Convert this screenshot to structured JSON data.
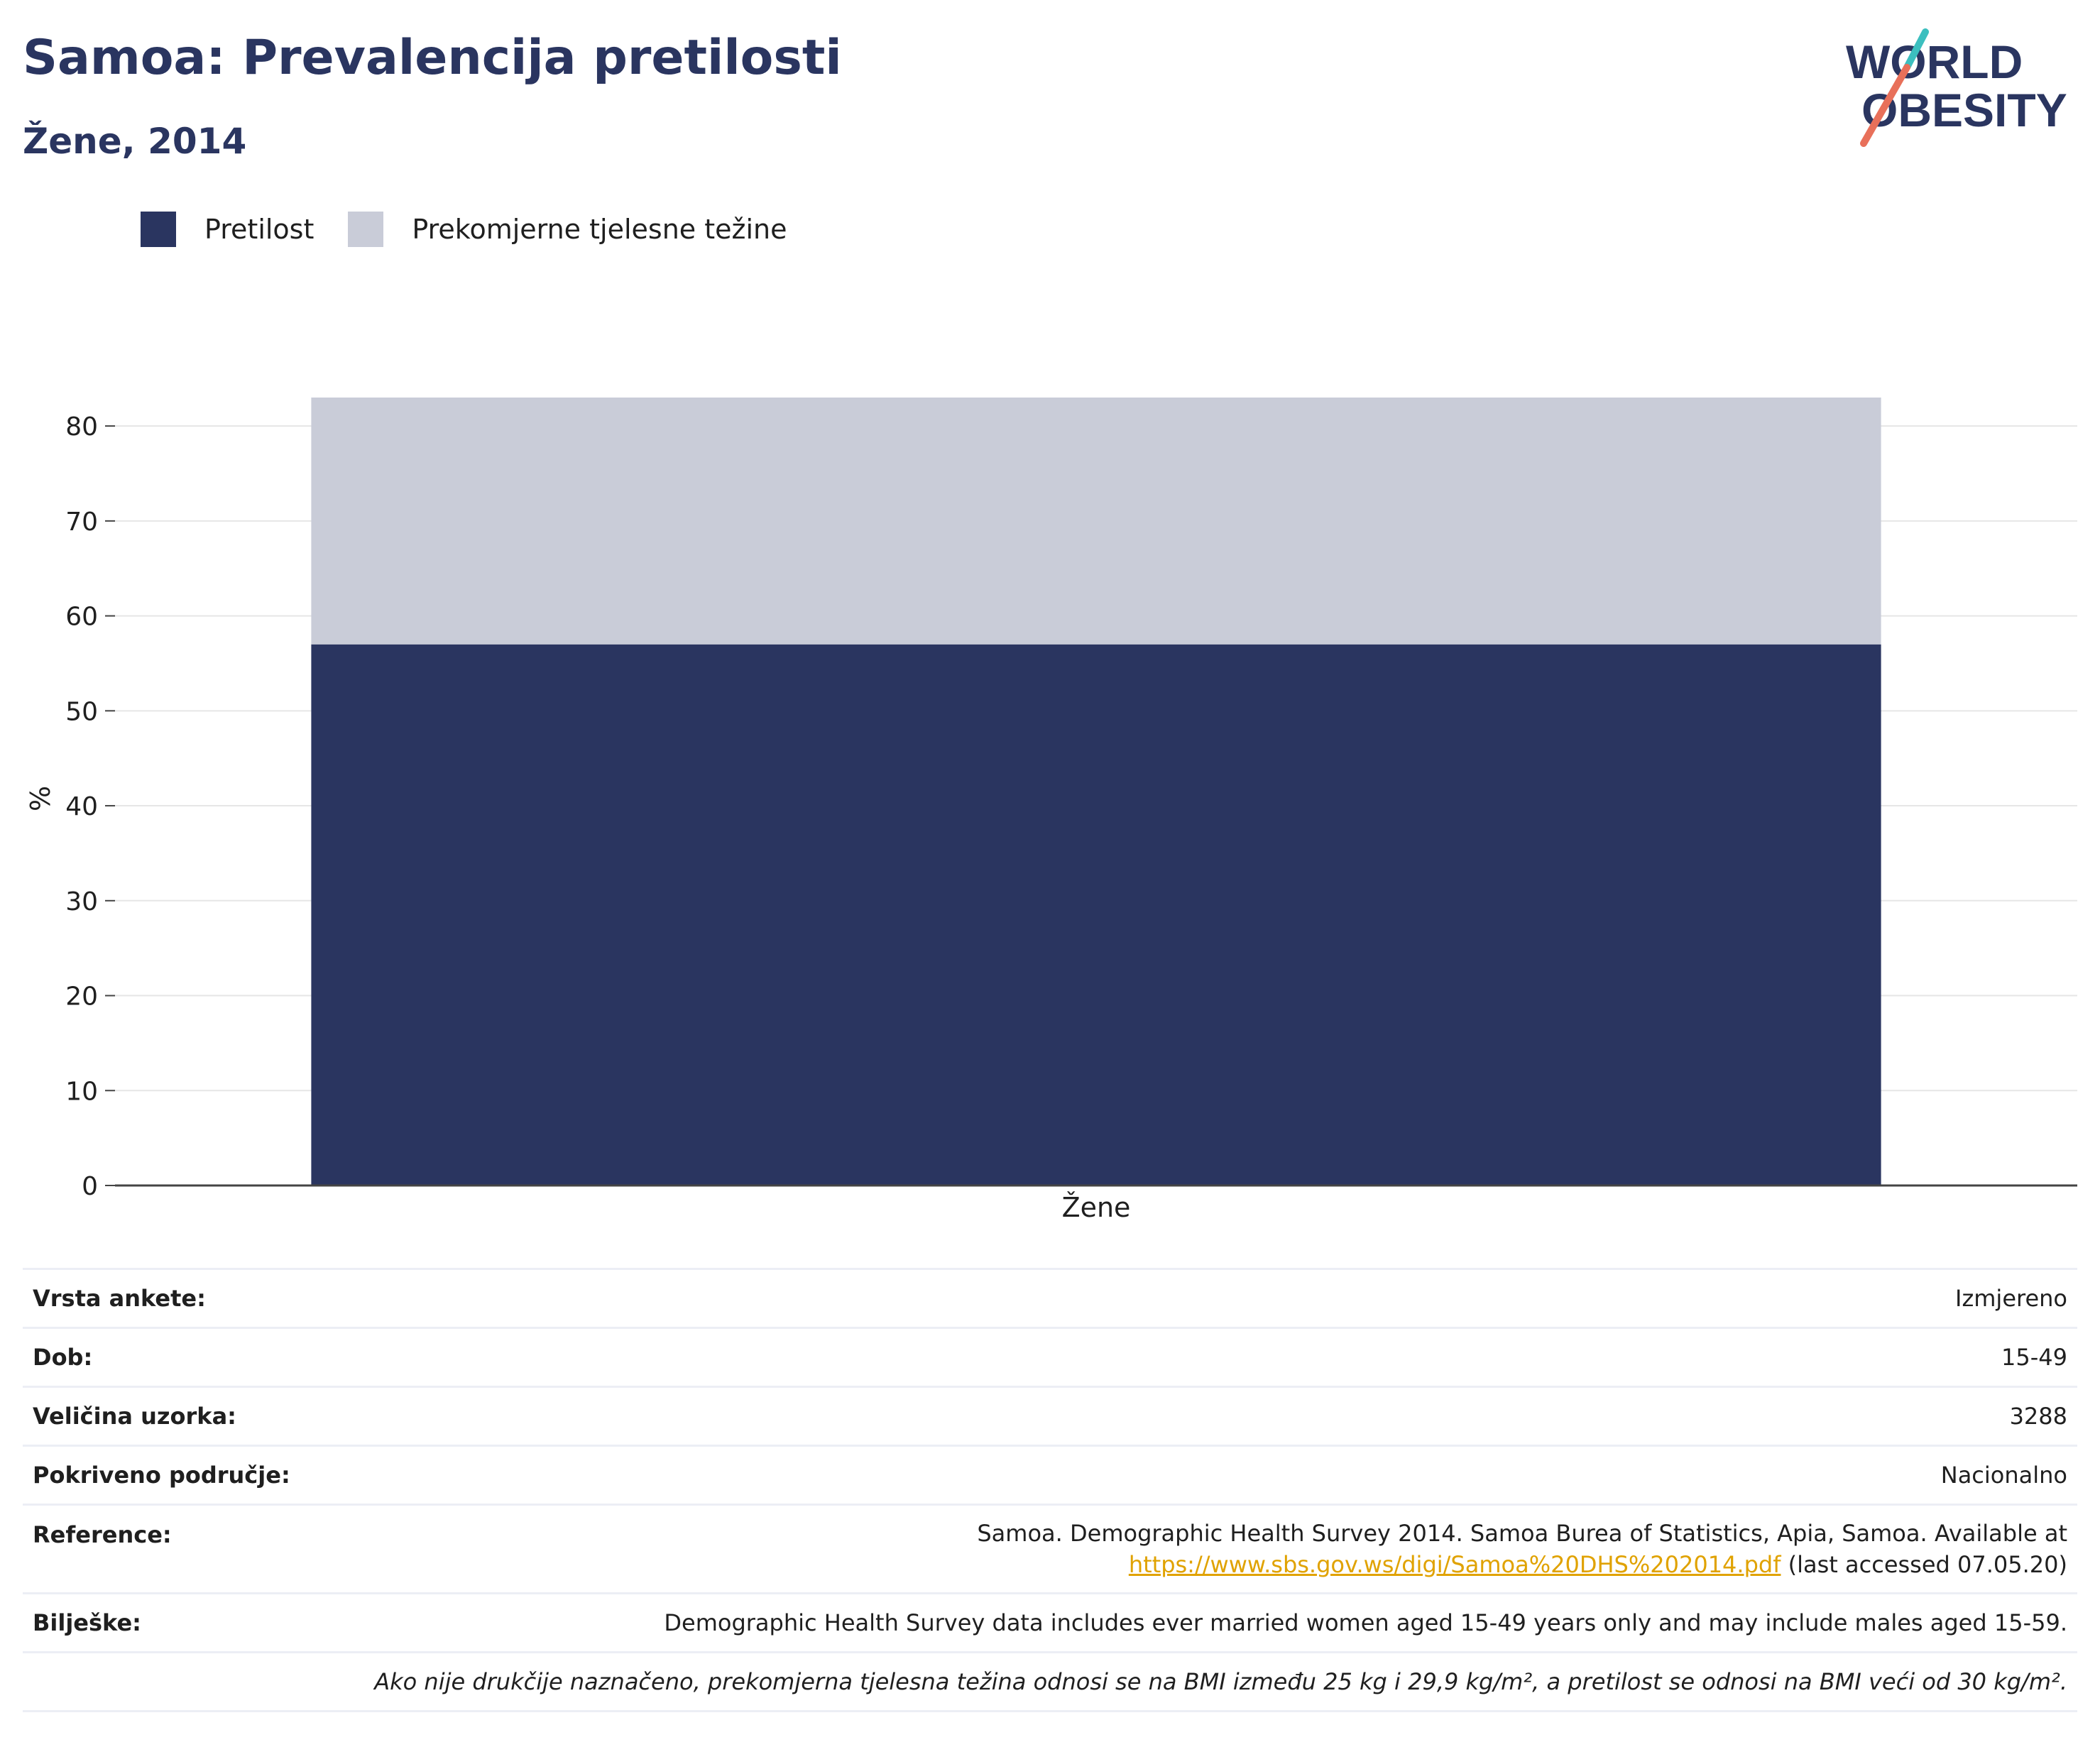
{
  "header": {
    "title": "Samoa: Prevalencija pretilosti",
    "subtitle": "Žene, 2014"
  },
  "logo": {
    "line1": "WORLD",
    "line2": "OBESITY"
  },
  "legend": [
    {
      "label": "Pretilost",
      "color": "#2a3560"
    },
    {
      "label": "Prekomjerne tjelesne težine",
      "color": "#c9ccd8"
    }
  ],
  "chart_data": {
    "type": "bar",
    "stacked": true,
    "categories": [
      "Žene"
    ],
    "series": [
      {
        "name": "Pretilost",
        "values": [
          57
        ],
        "color": "#2a3560"
      },
      {
        "name": "Prekomjerne tjelesne težine",
        "values": [
          26
        ],
        "color": "#c9ccd8"
      }
    ],
    "xlabel": "",
    "ylabel": "%",
    "ylim": [
      0,
      83
    ],
    "yticks": [
      0,
      10,
      20,
      30,
      40,
      50,
      60,
      70,
      80
    ],
    "grid": true,
    "legend_position": "top-left"
  },
  "info": {
    "survey_type": {
      "label": "Vrsta ankete:",
      "value": "Izmjereno"
    },
    "age": {
      "label": "Dob:",
      "value": "15-49"
    },
    "sample_size": {
      "label": "Veličina uzorka:",
      "value": "3288"
    },
    "coverage": {
      "label": "Pokriveno područje:",
      "value": "Nacionalno"
    },
    "reference": {
      "label": "Reference:",
      "text_line1": "Samoa. Demographic Health Survey 2014. Samoa Burea of Statistics, Apia, Samoa. Available at",
      "link": "https://www.sbs.gov.ws/digi/Samoa%20DHS%202014.pdf",
      "suffix": "(last accessed 07.05.20)"
    },
    "notes": {
      "label": "Bilješke:",
      "value": "Demographic Health Survey data includes ever married women aged 15-49 years only and may include males aged 15-59."
    },
    "footnote": "Ako nije drukčije naznačeno, prekomjerna tjelesna težina odnosi se na BMI između 25 kg i 29,9 kg/m², a pretilost se odnosi na BMI veći od 30 kg/m²."
  }
}
